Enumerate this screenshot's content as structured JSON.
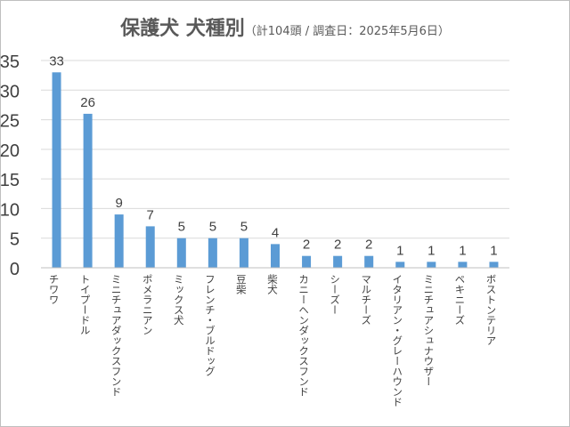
{
  "chart_data": {
    "type": "bar",
    "title": "保護犬 犬種別",
    "subtitle": "（計104頭 / 調査日：2025年5月6日）",
    "xlabel": "",
    "ylabel": "",
    "ylim": [
      0,
      35
    ],
    "yticks": [
      0,
      5,
      10,
      15,
      20,
      25,
      30,
      35
    ],
    "grid": true,
    "bar_color": "#5b9bd5",
    "categories": [
      "チワワ",
      "トイプードル",
      "ミニチュアダックスフンド",
      "ポメラニアン",
      "ミックス犬",
      "フレンチ・ブルドッグ",
      "豆柴",
      "柴犬",
      "カニーヘンダックスフンド",
      "シーズー",
      "マルチーズ",
      "イタリアン・グレーハウンド",
      "ミニチュアシュナウザー",
      "ペキニーズ",
      "ボストンテリア"
    ],
    "values": [
      33,
      26,
      9,
      7,
      5,
      5,
      5,
      4,
      2,
      2,
      2,
      1,
      1,
      1,
      1
    ]
  }
}
